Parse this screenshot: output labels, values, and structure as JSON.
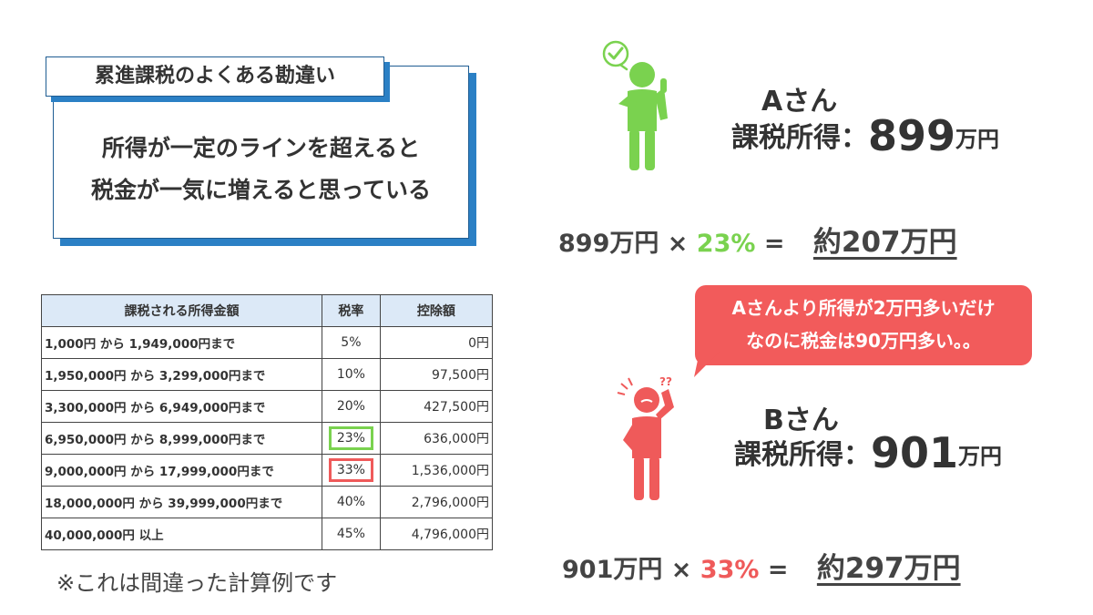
{
  "misconception": {
    "title": "累進課税のよくある勘違い",
    "line1": "所得が一定のラインを超えると",
    "line2": "税金が一気に増えると思っている"
  },
  "table": {
    "headers": [
      "課税される所得金額",
      "税率",
      "控除額"
    ],
    "rows": [
      {
        "range": "1,000円 から 1,949,000円まで",
        "rate": "5%",
        "deduction": "0円"
      },
      {
        "range": "1,950,000円 から 3,299,000円まで",
        "rate": "10%",
        "deduction": "97,500円"
      },
      {
        "range": "3,300,000円 から 6,949,000円まで",
        "rate": "20%",
        "deduction": "427,500円"
      },
      {
        "range": "6,950,000円 から 8,999,000円まで",
        "rate": "23%",
        "deduction": "636,000円"
      },
      {
        "range": "9,000,000円 から 17,999,000円まで",
        "rate": "33%",
        "deduction": "1,536,000円"
      },
      {
        "range": "18,000,000円 から 39,999,000円まで",
        "rate": "40%",
        "deduction": "2,796,000円"
      },
      {
        "range": "40,000,000円 以上",
        "rate": "45%",
        "deduction": "4,796,000円"
      }
    ]
  },
  "note": "※これは間違った計算例です",
  "person_a": {
    "name": "Aさん",
    "income_label": "課税所得：",
    "income_value": "899",
    "income_unit": "万円",
    "calc_base": "899万円 ×",
    "calc_rate": "23%",
    "calc_eq": "=",
    "calc_result": "約207万円",
    "color": "#7ad24f",
    "icon": "check-icon"
  },
  "person_b": {
    "name": "Bさん",
    "income_label": "課税所得：",
    "income_value": "901",
    "income_unit": "万円",
    "calc_base": "901万円 ×",
    "calc_rate": "33%",
    "calc_eq": "=",
    "calc_result": "約297万円",
    "color": "#ef5a5a",
    "icon": "question-icon"
  },
  "bubble": {
    "line1": "Aさんより所得が2万円多いだけ",
    "line2": "なのに税金は90万円多い。。"
  }
}
